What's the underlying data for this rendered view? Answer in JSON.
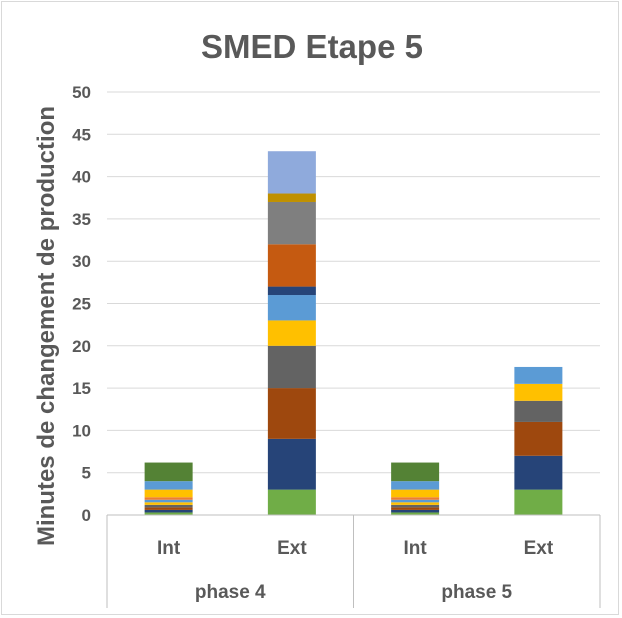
{
  "chart_data": {
    "type": "bar",
    "stacked": true,
    "title": "SMED Etape 5",
    "ylabel": "Minutes  de changement de production",
    "xlabel": "",
    "ylim": [
      0,
      50
    ],
    "yticks": [
      0,
      5,
      10,
      15,
      20,
      25,
      30,
      35,
      40,
      45,
      50
    ],
    "grid": true,
    "legend": "none",
    "groups": [
      "phase 4",
      "phase 5"
    ],
    "categories": [
      {
        "label": "Int",
        "group": "phase 4"
      },
      {
        "label": "Ext",
        "group": "phase 4"
      },
      {
        "label": "Int",
        "group": "phase 5"
      },
      {
        "label": "Ext",
        "group": "phase 5"
      }
    ],
    "series": [
      {
        "color": "#70ad47",
        "values": [
          0.3,
          3,
          0.3,
          3
        ]
      },
      {
        "color": "#264478",
        "values": [
          0.3,
          6,
          0.3,
          4
        ]
      },
      {
        "color": "#9e480e",
        "values": [
          0.3,
          6,
          0.3,
          4
        ]
      },
      {
        "color": "#636363",
        "values": [
          0.3,
          5,
          0.3,
          2.5
        ]
      },
      {
        "color": "#ffc000",
        "values": [
          0.3,
          3,
          0.3,
          2
        ]
      },
      {
        "color": "#5b9bd5",
        "values": [
          0.3,
          3,
          0.3,
          2
        ]
      },
      {
        "color": "#ed7d31",
        "values": [
          0.3,
          0,
          0.3,
          0
        ]
      },
      {
        "color": "#ffc000",
        "values": [
          0.9,
          0,
          0.9,
          0
        ]
      },
      {
        "color": "#5b9bd5",
        "values": [
          1.0,
          0,
          1.0,
          0
        ]
      },
      {
        "color": "#264478",
        "values": [
          0,
          1,
          0,
          0
        ]
      },
      {
        "color": "#c55a11",
        "values": [
          0,
          5,
          0,
          0
        ]
      },
      {
        "color": "#7f7f7f",
        "values": [
          0,
          5,
          0,
          0
        ]
      },
      {
        "color": "#bf9000",
        "values": [
          0,
          1,
          0,
          0
        ]
      },
      {
        "color": "#8faadc",
        "values": [
          0,
          5,
          0,
          0
        ]
      },
      {
        "color": "#548235",
        "values": [
          2.2,
          0,
          2.2,
          0
        ]
      }
    ]
  }
}
